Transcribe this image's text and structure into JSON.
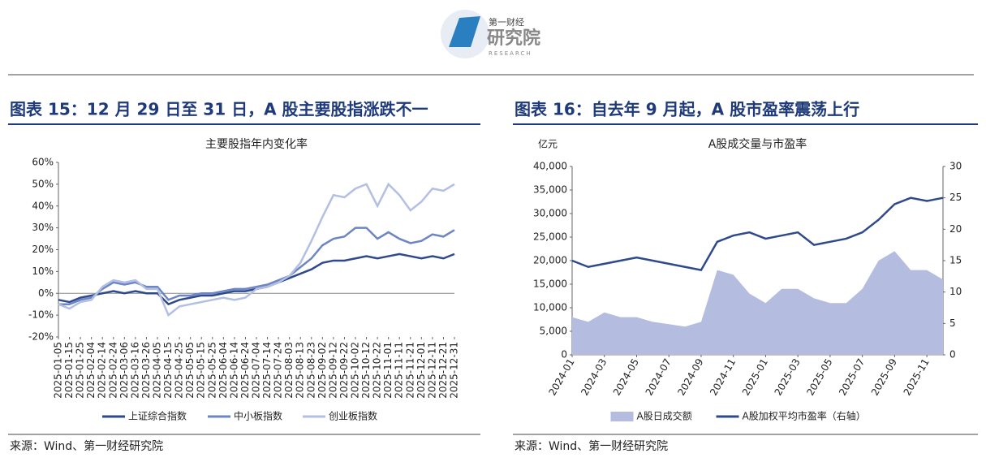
{
  "header": {
    "brand": "第一财经",
    "name": "研究院",
    "sub": "RESEARCH"
  },
  "panels": [
    {
      "title": "图表 15：12 月 29 日至 31 日，A 股主要股指涨跌不一",
      "source": "来源：Wind、第一财经研究院"
    },
    {
      "title": "图表 16：自去年 9 月起，A 股市盈率震荡上行",
      "source": "来源：Wind、第一财经研究院"
    }
  ],
  "chart_data": [
    {
      "type": "line",
      "title": "主要股指年内变化率",
      "categories": [
        "2025-01-05",
        "2025-01-15",
        "2025-01-25",
        "2025-02-04",
        "2025-02-14",
        "2025-02-24",
        "2025-03-06",
        "2025-03-16",
        "2025-03-26",
        "2025-04-05",
        "2025-04-15",
        "2025-04-25",
        "2025-05-05",
        "2025-05-15",
        "2025-05-25",
        "2025-06-04",
        "2025-06-14",
        "2025-06-24",
        "2025-07-04",
        "2025-07-14",
        "2025-07-24",
        "2025-08-03",
        "2025-08-13",
        "2025-08-23",
        "2025-09-02",
        "2025-09-12",
        "2025-09-22",
        "2025-10-02",
        "2025-10-12",
        "2025-10-22",
        "2025-11-01",
        "2025-11-11",
        "2025-11-21",
        "2025-12-01",
        "2025-12-11",
        "2025-12-21",
        "2025-12-31"
      ],
      "series": [
        {
          "name": "上证综合指数",
          "color": "#2e4a8c",
          "values": [
            -3,
            -4,
            -2,
            -1,
            0,
            1,
            0,
            1,
            0,
            0,
            -5,
            -3,
            -2,
            -1,
            -1,
            0,
            1,
            1,
            2,
            3,
            5,
            7,
            9,
            11,
            14,
            15,
            15,
            16,
            17,
            16,
            17,
            18,
            17,
            16,
            17,
            16,
            18
          ]
        },
        {
          "name": "中小板指数",
          "color": "#6d85c4",
          "values": [
            -5,
            -5,
            -3,
            -2,
            2,
            5,
            4,
            5,
            3,
            3,
            -3,
            -1,
            -1,
            0,
            0,
            1,
            2,
            2,
            3,
            4,
            6,
            8,
            12,
            16,
            22,
            25,
            26,
            30,
            30,
            25,
            28,
            25,
            23,
            24,
            27,
            26,
            29
          ]
        },
        {
          "name": "创业板指数",
          "color": "#b3bfe3",
          "values": [
            -5,
            -7,
            -4,
            -3,
            3,
            6,
            5,
            6,
            2,
            2,
            -10,
            -6,
            -5,
            -4,
            -3,
            -2,
            -3,
            -2,
            2,
            3,
            5,
            8,
            14,
            24,
            35,
            45,
            44,
            48,
            50,
            40,
            50,
            45,
            38,
            42,
            48,
            47,
            50
          ]
        }
      ],
      "ylim": [
        -20,
        60
      ],
      "yticks": [
        {
          "value": -20,
          "label": "-20%"
        },
        {
          "value": -10,
          "label": "-10%"
        },
        {
          "value": 0,
          "label": "0%"
        },
        {
          "value": 10,
          "label": "10%"
        },
        {
          "value": 20,
          "label": "20%"
        },
        {
          "value": 30,
          "label": "30%"
        },
        {
          "value": 40,
          "label": "40%"
        },
        {
          "value": 50,
          "label": "50%"
        },
        {
          "value": 60,
          "label": "60%"
        }
      ],
      "grid": false
    },
    {
      "type": "line",
      "title": "A股成交量与市盈率",
      "y_label": "亿元",
      "categories": [
        "2024-01",
        null,
        "2024-03",
        null,
        "2024-05",
        null,
        "2024-07",
        null,
        "2024-09",
        null,
        "2024-11",
        null,
        "2025-01",
        null,
        "2025-03",
        null,
        "2025-05",
        null,
        "2025-07",
        null,
        "2025-09",
        null,
        "2025-11",
        null
      ],
      "series": [
        {
          "name": "A股日成交额",
          "type": "area",
          "color": "#b4bce0",
          "values": [
            8000,
            7000,
            9000,
            8000,
            8000,
            7000,
            6500,
            6000,
            7000,
            18000,
            17000,
            13000,
            11000,
            14000,
            14000,
            12000,
            11000,
            11000,
            14000,
            20000,
            22000,
            18000,
            18000,
            16000
          ]
        },
        {
          "name": "A股加权平均市盈率（右轴）",
          "color": "#2e4a8c",
          "axis": "y2",
          "values": [
            15,
            14,
            14.5,
            15,
            15.5,
            15,
            14.5,
            14,
            13.5,
            18,
            19,
            19.5,
            18.5,
            19,
            19.5,
            17.5,
            18,
            18.5,
            19.5,
            21.5,
            24,
            25,
            24.5,
            25
          ]
        }
      ],
      "ylim": [
        0,
        40000
      ],
      "yticks": [
        0,
        {
          "value": 5000,
          "label": "5,000"
        },
        {
          "value": 10000,
          "label": "10,000"
        },
        {
          "value": 15000,
          "label": "15,000"
        },
        {
          "value": 20000,
          "label": "20,000"
        },
        {
          "value": 25000,
          "label": "25,000"
        },
        {
          "value": 30000,
          "label": "30,000"
        },
        {
          "value": 35000,
          "label": "35,000"
        },
        {
          "value": 40000,
          "label": "40,000"
        }
      ],
      "y2lim": [
        0,
        30
      ],
      "y2ticks": [
        0,
        5,
        10,
        15,
        20,
        25,
        30
      ],
      "grid": false
    }
  ]
}
